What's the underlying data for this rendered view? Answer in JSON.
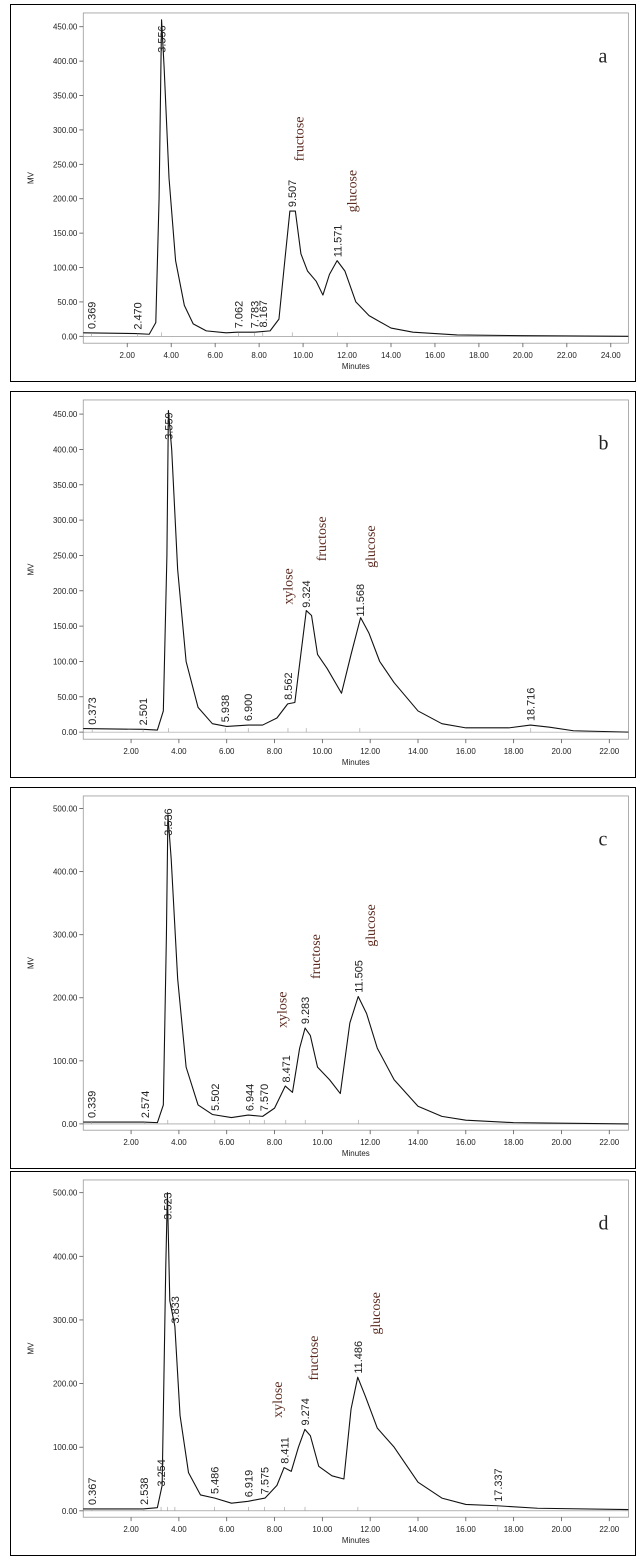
{
  "chart_data": [
    {
      "type": "line",
      "panel_label": "a",
      "xlabel": "Minutes",
      "ylabel": "MV",
      "xlim": [
        0,
        24.8
      ],
      "ylim": [
        -10,
        470
      ],
      "xticks": [
        2,
        4,
        6,
        8,
        10,
        12,
        14,
        16,
        18,
        20,
        22,
        24
      ],
      "xtick_labels": [
        "2.00",
        "4.00",
        "6.00",
        "8.00",
        "10.00",
        "12.00",
        "14.00",
        "16.00",
        "18.00",
        "20.00",
        "22.00",
        "24.00"
      ],
      "yticks": [
        0,
        50,
        100,
        150,
        200,
        250,
        300,
        350,
        400,
        450
      ],
      "ytick_labels": [
        "0.00",
        "50.00",
        "100.00",
        "150.00",
        "200.00",
        "250.00",
        "300.00",
        "350.00",
        "400.00",
        "450.00"
      ],
      "trace": [
        [
          0,
          5
        ],
        [
          2.4,
          4
        ],
        [
          3.0,
          3
        ],
        [
          3.3,
          20
        ],
        [
          3.45,
          200
        ],
        [
          3.56,
          460
        ],
        [
          3.68,
          390
        ],
        [
          3.9,
          230
        ],
        [
          4.2,
          110
        ],
        [
          4.6,
          45
        ],
        [
          5.0,
          18
        ],
        [
          5.6,
          8
        ],
        [
          6.5,
          5
        ],
        [
          7.0,
          6
        ],
        [
          7.8,
          6
        ],
        [
          8.5,
          8
        ],
        [
          8.9,
          25
        ],
        [
          9.2,
          120
        ],
        [
          9.4,
          182
        ],
        [
          9.65,
          182
        ],
        [
          9.9,
          120
        ],
        [
          10.2,
          95
        ],
        [
          10.6,
          80
        ],
        [
          10.9,
          60
        ],
        [
          11.2,
          90
        ],
        [
          11.55,
          110
        ],
        [
          11.9,
          95
        ],
        [
          12.4,
          50
        ],
        [
          13,
          30
        ],
        [
          14,
          12
        ],
        [
          15,
          6
        ],
        [
          17,
          2
        ],
        [
          20,
          1
        ],
        [
          24.8,
          0
        ]
      ],
      "peaks": [
        {
          "x": 0.369,
          "label": "0.369"
        },
        {
          "x": 2.47,
          "label": "2.470"
        },
        {
          "x": 3.556,
          "label": "3.556"
        },
        {
          "x": 7.062,
          "label": "7.062"
        },
        {
          "x": 7.783,
          "label": "7.783"
        },
        {
          "x": 8.167,
          "label": "8.167"
        },
        {
          "x": 9.507,
          "label": "9.507"
        },
        {
          "x": 11.571,
          "label": "11.571"
        }
      ],
      "components": [
        {
          "x": 9.8,
          "label": "fructose"
        },
        {
          "x": 12.2,
          "label": "glucose"
        }
      ]
    },
    {
      "type": "line",
      "panel_label": "b",
      "xlabel": "Minutes",
      "ylabel": "MV",
      "xlim": [
        0,
        22.8
      ],
      "ylim": [
        -10,
        470
      ],
      "xticks": [
        2,
        4,
        6,
        8,
        10,
        12,
        14,
        16,
        18,
        20,
        22
      ],
      "xtick_labels": [
        "2.00",
        "4.00",
        "6.00",
        "8.00",
        "10.00",
        "12.00",
        "14.00",
        "16.00",
        "18.00",
        "20.00",
        "22.00"
      ],
      "yticks": [
        0,
        50,
        100,
        150,
        200,
        250,
        300,
        350,
        400,
        450
      ],
      "ytick_labels": [
        "0.00",
        "50.00",
        "100.00",
        "150.00",
        "200.00",
        "250.00",
        "300.00",
        "350.00",
        "400.00",
        "450.00"
      ],
      "trace": [
        [
          0,
          5
        ],
        [
          2.5,
          4
        ],
        [
          3.1,
          3
        ],
        [
          3.35,
          30
        ],
        [
          3.5,
          250
        ],
        [
          3.56,
          455
        ],
        [
          3.7,
          400
        ],
        [
          3.95,
          230
        ],
        [
          4.3,
          100
        ],
        [
          4.8,
          35
        ],
        [
          5.4,
          12
        ],
        [
          6.0,
          8
        ],
        [
          6.9,
          10
        ],
        [
          7.5,
          10
        ],
        [
          8.1,
          20
        ],
        [
          8.55,
          40
        ],
        [
          8.85,
          42
        ],
        [
          9.1,
          110
        ],
        [
          9.33,
          172
        ],
        [
          9.55,
          165
        ],
        [
          9.8,
          110
        ],
        [
          10.2,
          90
        ],
        [
          10.8,
          55
        ],
        [
          11.2,
          110
        ],
        [
          11.6,
          162
        ],
        [
          11.95,
          140
        ],
        [
          12.4,
          100
        ],
        [
          13,
          70
        ],
        [
          14,
          30
        ],
        [
          15,
          12
        ],
        [
          16,
          6
        ],
        [
          17.8,
          6
        ],
        [
          18.7,
          10
        ],
        [
          19.5,
          7
        ],
        [
          20.5,
          2
        ],
        [
          22.8,
          0
        ]
      ],
      "peaks": [
        {
          "x": 0.373,
          "label": "0.373"
        },
        {
          "x": 2.501,
          "label": "2.501"
        },
        {
          "x": 3.559,
          "label": "3.559"
        },
        {
          "x": 5.938,
          "label": "5.938"
        },
        {
          "x": 6.9,
          "label": "6.900"
        },
        {
          "x": 8.562,
          "label": "8.562"
        },
        {
          "x": 9.324,
          "label": "9.324"
        },
        {
          "x": 11.568,
          "label": "11.568"
        },
        {
          "x": 18.716,
          "label": "18.716"
        }
      ],
      "components": [
        {
          "x": 8.55,
          "label": "xylose"
        },
        {
          "x": 9.95,
          "label": "fructose"
        },
        {
          "x": 12.0,
          "label": "glucose"
        }
      ]
    },
    {
      "type": "line",
      "panel_label": "c",
      "xlabel": "Minutes",
      "ylabel": "MV",
      "xlim": [
        0,
        22.8
      ],
      "ylim": [
        -10,
        520
      ],
      "xticks": [
        2,
        4,
        6,
        8,
        10,
        12,
        14,
        16,
        18,
        20,
        22
      ],
      "xtick_labels": [
        "2.00",
        "4.00",
        "6.00",
        "8.00",
        "10.00",
        "12.00",
        "14.00",
        "16.00",
        "18.00",
        "20.00",
        "22.00"
      ],
      "yticks": [
        0,
        100,
        200,
        300,
        400,
        500
      ],
      "ytick_labels": [
        "0.00",
        "100.00",
        "200.00",
        "300.00",
        "400.00",
        "500.00"
      ],
      "trace": [
        [
          0,
          3
        ],
        [
          2.5,
          3
        ],
        [
          3.1,
          2
        ],
        [
          3.35,
          30
        ],
        [
          3.48,
          300
        ],
        [
          3.54,
          490
        ],
        [
          3.68,
          420
        ],
        [
          3.95,
          230
        ],
        [
          4.3,
          90
        ],
        [
          4.8,
          30
        ],
        [
          5.4,
          15
        ],
        [
          6.2,
          10
        ],
        [
          6.9,
          14
        ],
        [
          7.5,
          12
        ],
        [
          8.0,
          25
        ],
        [
          8.45,
          60
        ],
        [
          8.75,
          50
        ],
        [
          9.05,
          120
        ],
        [
          9.28,
          152
        ],
        [
          9.5,
          140
        ],
        [
          9.8,
          90
        ],
        [
          10.3,
          70
        ],
        [
          10.75,
          48
        ],
        [
          11.15,
          160
        ],
        [
          11.5,
          202
        ],
        [
          11.85,
          175
        ],
        [
          12.3,
          120
        ],
        [
          13,
          70
        ],
        [
          14,
          28
        ],
        [
          15,
          12
        ],
        [
          16,
          6
        ],
        [
          18,
          2
        ],
        [
          22.8,
          0
        ]
      ],
      "peaks": [
        {
          "x": 0.339,
          "label": "0.339"
        },
        {
          "x": 2.574,
          "label": "2.574"
        },
        {
          "x": 3.536,
          "label": "3.536"
        },
        {
          "x": 5.502,
          "label": "5.502"
        },
        {
          "x": 6.944,
          "label": "6.944"
        },
        {
          "x": 7.57,
          "label": "7.570"
        },
        {
          "x": 8.471,
          "label": "8.471"
        },
        {
          "x": 9.283,
          "label": "9.283"
        },
        {
          "x": 11.505,
          "label": "11.505"
        }
      ],
      "components": [
        {
          "x": 8.3,
          "label": "xylose"
        },
        {
          "x": 9.7,
          "label": "fructose"
        },
        {
          "x": 12.0,
          "label": "glucose"
        }
      ]
    },
    {
      "type": "line",
      "panel_label": "d",
      "xlabel": "Minutes",
      "ylabel": "MV",
      "xlim": [
        0,
        22.8
      ],
      "ylim": [
        -10,
        520
      ],
      "xticks": [
        2,
        4,
        6,
        8,
        10,
        12,
        14,
        16,
        18,
        20,
        22
      ],
      "xtick_labels": [
        "2.00",
        "4.00",
        "6.00",
        "8.00",
        "10.00",
        "12.00",
        "14.00",
        "16.00",
        "18.00",
        "20.00",
        "22.00"
      ],
      "yticks": [
        0,
        100,
        200,
        300,
        400,
        500
      ],
      "ytick_labels": [
        "0.00",
        "100.00",
        "200.00",
        "300.00",
        "400.00",
        "500.00"
      ],
      "trace": [
        [
          0,
          3
        ],
        [
          2.5,
          3
        ],
        [
          3.1,
          5
        ],
        [
          3.3,
          40
        ],
        [
          3.45,
          380
        ],
        [
          3.52,
          500
        ],
        [
          3.62,
          330
        ],
        [
          3.83,
          290
        ],
        [
          4.05,
          150
        ],
        [
          4.4,
          60
        ],
        [
          4.9,
          25
        ],
        [
          5.5,
          20
        ],
        [
          6.2,
          12
        ],
        [
          6.9,
          15
        ],
        [
          7.6,
          20
        ],
        [
          8.1,
          40
        ],
        [
          8.4,
          68
        ],
        [
          8.7,
          62
        ],
        [
          9.0,
          100
        ],
        [
          9.27,
          128
        ],
        [
          9.5,
          118
        ],
        [
          9.85,
          70
        ],
        [
          10.4,
          55
        ],
        [
          10.9,
          50
        ],
        [
          11.2,
          160
        ],
        [
          11.48,
          210
        ],
        [
          11.8,
          180
        ],
        [
          12.3,
          130
        ],
        [
          13,
          100
        ],
        [
          14,
          45
        ],
        [
          15,
          20
        ],
        [
          16,
          10
        ],
        [
          17.3,
          8
        ],
        [
          19,
          4
        ],
        [
          22.8,
          2
        ]
      ],
      "peaks": [
        {
          "x": 0.367,
          "label": "0.367"
        },
        {
          "x": 2.538,
          "label": "2.538"
        },
        {
          "x": 3.254,
          "label": "3.254"
        },
        {
          "x": 3.523,
          "label": "3.523"
        },
        {
          "x": 3.833,
          "label": "3.833"
        },
        {
          "x": 5.486,
          "label": "5.486"
        },
        {
          "x": 6.919,
          "label": "6.919"
        },
        {
          "x": 7.575,
          "label": "7.575"
        },
        {
          "x": 8.411,
          "label": "8.411"
        },
        {
          "x": 9.274,
          "label": "9.274"
        },
        {
          "x": 11.486,
          "label": "11.486"
        },
        {
          "x": 17.337,
          "label": "17.337"
        }
      ],
      "components": [
        {
          "x": 8.1,
          "label": "xylose"
        },
        {
          "x": 9.6,
          "label": "fructose"
        },
        {
          "x": 12.2,
          "label": "glucose"
        }
      ]
    }
  ]
}
